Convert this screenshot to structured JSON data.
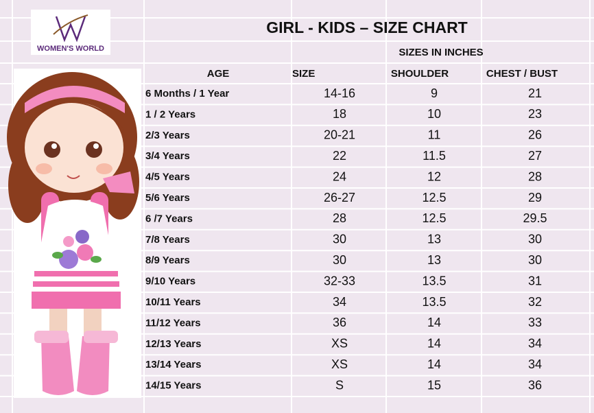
{
  "logo": {
    "brand": "WOMEN'S WORLD"
  },
  "table": {
    "title": "GIRL - KIDS – SIZE CHART",
    "group_header": "SIZES IN INCHES",
    "columns": [
      "AGE",
      "SIZE",
      "SHOULDER",
      "CHEST / BUST"
    ],
    "rows": [
      [
        "6 Months / 1 Year",
        "14-16",
        "9",
        "21"
      ],
      [
        "1 / 2 Years",
        "18",
        "10",
        "23"
      ],
      [
        "2/3 Years",
        "20-21",
        "11",
        "26"
      ],
      [
        "3/4 Years",
        "22",
        "11.5",
        "27"
      ],
      [
        "4/5 Years",
        "24",
        "12",
        "28"
      ],
      [
        "5/6 Years",
        "26-27",
        "12.5",
        "29"
      ],
      [
        "6 /7 Years",
        "28",
        "12.5",
        "29.5"
      ],
      [
        "7/8 Years",
        "30",
        "13",
        "30"
      ],
      [
        "8/9 Years",
        "30",
        "13",
        "30"
      ],
      [
        "9/10 Years",
        "32-33",
        "13.5",
        "31"
      ],
      [
        "10/11 Years",
        "34",
        "13.5",
        "32"
      ],
      [
        "11/12 Years",
        "36",
        "14",
        "33"
      ],
      [
        "12/13 Years",
        "XS",
        "14",
        "34"
      ],
      [
        "13/14 Years",
        "XS",
        "14",
        "34"
      ],
      [
        "14/15 Years",
        "S",
        "15",
        "36"
      ]
    ]
  }
}
